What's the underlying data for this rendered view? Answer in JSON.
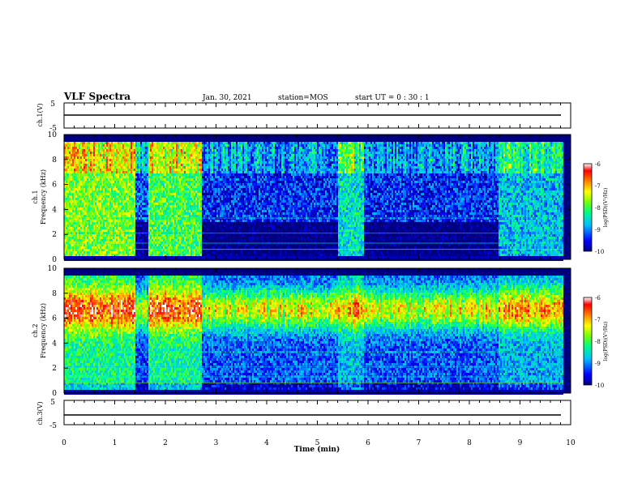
{
  "header": {
    "title": "VLF Spectra",
    "date": "Jan. 30, 2021",
    "station": "station=MOS",
    "start": "start  UT =   0  : 30 : 1"
  },
  "panels": {
    "ch1_wave": {
      "ylabel": "ch.1(V)",
      "ticks": [
        "5",
        "-5"
      ]
    },
    "ch1_spec": {
      "ylabel": "ch.1\nFrequency (kHz)",
      "ylabel_ch": "ch.1",
      "ylabel_freq": "Frequency (kHz)",
      "ticks": [
        "0",
        "2",
        "4",
        "6",
        "8",
        "10"
      ]
    },
    "ch2_spec": {
      "ylabel_ch": "ch.2",
      "ylabel_freq": "Frequency (kHz)",
      "ticks": [
        "0",
        "2",
        "4",
        "6",
        "8",
        "10"
      ]
    },
    "ch3_wave": {
      "ylabel": "ch.3(V)",
      "ticks": [
        "5",
        "-5"
      ]
    }
  },
  "xaxis": {
    "label": "Time (min)",
    "ticks": [
      "0",
      "1",
      "2",
      "3",
      "4",
      "5",
      "6",
      "7",
      "8",
      "9",
      "10"
    ]
  },
  "colorbar": {
    "label": "log(PSD)(V²/Hz)",
    "ticks": [
      "-6",
      "-7",
      "-8",
      "-9",
      "-10"
    ]
  },
  "colors": {
    "scale": [
      "#00007f",
      "#0000ff",
      "#00bfff",
      "#00ff80",
      "#80ff00",
      "#ffff00",
      "#ff8000",
      "#ff0000",
      "#ffffff"
    ]
  },
  "chart_data": [
    {
      "type": "line",
      "title": "ch.1(V)",
      "x": [
        0,
        10
      ],
      "xlim": [
        0,
        10
      ],
      "ylim": [
        -5,
        5
      ],
      "series": [
        {
          "values": [
            0,
            0
          ]
        }
      ]
    },
    {
      "type": "heatmap",
      "title": "ch.1",
      "xlabel": "Time (min)",
      "ylabel": "Frequency (kHz)",
      "xlim": [
        0,
        10
      ],
      "ylim": [
        0,
        10
      ],
      "zlim": [
        -10,
        -6
      ],
      "time_segments": [
        {
          "t0": 0.0,
          "t1": 1.4,
          "level": -7.0
        },
        {
          "t0": 1.4,
          "t1": 1.65,
          "level": -9.0
        },
        {
          "t0": 1.65,
          "t1": 2.7,
          "level": -7.3
        },
        {
          "t0": 2.7,
          "t1": 5.4,
          "level": -9.2
        },
        {
          "t0": 5.4,
          "t1": 5.9,
          "level": -8.0
        },
        {
          "t0": 5.9,
          "t1": 8.55,
          "level": -9.2
        },
        {
          "t0": 8.55,
          "t1": 9.85,
          "level": -8.3
        }
      ]
    },
    {
      "type": "heatmap",
      "title": "ch.2",
      "xlabel": "Time (min)",
      "ylabel": "Frequency (kHz)",
      "xlim": [
        0,
        10
      ],
      "ylim": [
        0,
        10
      ],
      "zlim": [
        -10,
        -6
      ],
      "peak_band_khz": [
        6,
        7.5
      ],
      "time_segments": [
        {
          "t0": 0.0,
          "t1": 1.4,
          "level": -6.8
        },
        {
          "t0": 1.4,
          "t1": 1.65,
          "level": -8.8
        },
        {
          "t0": 1.65,
          "t1": 2.7,
          "level": -6.9
        },
        {
          "t0": 2.7,
          "t1": 5.4,
          "level": -8.6
        },
        {
          "t0": 5.4,
          "t1": 5.9,
          "level": -7.8
        },
        {
          "t0": 5.9,
          "t1": 8.55,
          "level": -8.6
        },
        {
          "t0": 8.55,
          "t1": 9.85,
          "level": -7.9
        }
      ]
    },
    {
      "type": "line",
      "title": "ch.3(V)",
      "x": [
        0,
        10
      ],
      "xlim": [
        0,
        10
      ],
      "ylim": [
        -5,
        5
      ],
      "series": [
        {
          "values": [
            0,
            0
          ]
        }
      ]
    }
  ]
}
